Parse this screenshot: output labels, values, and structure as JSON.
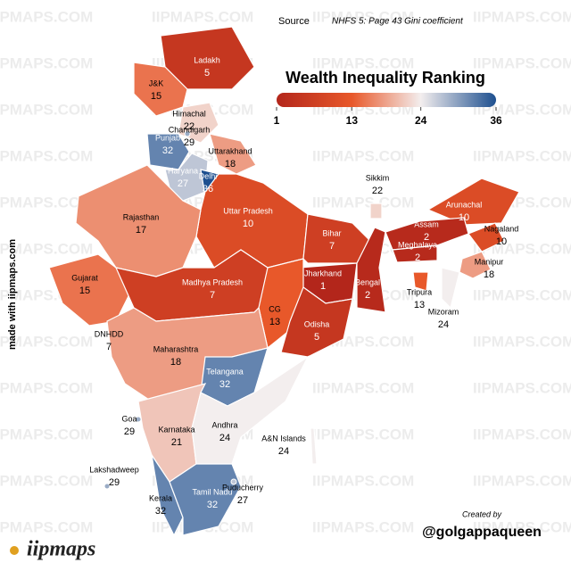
{
  "header": {
    "source_label": "Source",
    "source_text": "NHFS 5: Page 43 Gini coefficient"
  },
  "legend": {
    "title": "Wealth Inequality Ranking",
    "ticks": [
      1,
      13,
      24,
      36
    ],
    "colors": [
      "#b3261b",
      "#e8582a",
      "#f3eeee",
      "#1d4f8f"
    ]
  },
  "regions": [
    {
      "name": "Ladakh",
      "rank": 5
    },
    {
      "name": "J&K",
      "rank": 15
    },
    {
      "name": "Himachal",
      "rank": 22
    },
    {
      "name": "Chandigarh",
      "rank": 29
    },
    {
      "name": "Punjab",
      "rank": 32
    },
    {
      "name": "Haryana",
      "rank": 27
    },
    {
      "name": "Delhi",
      "rank": 36
    },
    {
      "name": "Uttarakhand",
      "rank": 18
    },
    {
      "name": "Uttar Pradesh",
      "rank": 10
    },
    {
      "name": "Rajasthan",
      "rank": 17
    },
    {
      "name": "Gujarat",
      "rank": 15
    },
    {
      "name": "Madhya Pradesh",
      "rank": 7
    },
    {
      "name": "Bihar",
      "rank": 7
    },
    {
      "name": "Jharkhand",
      "rank": 1
    },
    {
      "name": "Bengal",
      "rank": 2
    },
    {
      "name": "Sikkim",
      "rank": 22
    },
    {
      "name": "Arunachal",
      "rank": 10
    },
    {
      "name": "Assam",
      "rank": 2
    },
    {
      "name": "Meghalaya",
      "rank": 2
    },
    {
      "name": "Nagaland",
      "rank": 10
    },
    {
      "name": "Manipur",
      "rank": 18
    },
    {
      "name": "Tripura",
      "rank": 13
    },
    {
      "name": "Mizoram",
      "rank": 24
    },
    {
      "name": "CG",
      "rank": 13
    },
    {
      "name": "Odisha",
      "rank": 5
    },
    {
      "name": "DNHDD",
      "rank": 7
    },
    {
      "name": "Maharashtra",
      "rank": 18
    },
    {
      "name": "Telangana",
      "rank": 32
    },
    {
      "name": "Goa",
      "rank": 29
    },
    {
      "name": "Karnataka",
      "rank": 21
    },
    {
      "name": "Andhra",
      "rank": 24
    },
    {
      "name": "A&N Islands",
      "rank": 24
    },
    {
      "name": "Lakshadweep",
      "rank": 29
    },
    {
      "name": "Kerala",
      "rank": 32
    },
    {
      "name": "Tamil Nadu",
      "rank": 32
    },
    {
      "name": "Puducherry",
      "rank": 27
    }
  ],
  "side_text": "made with iipmaps.com",
  "credit": {
    "label": "Created by",
    "handle": "@golgappaqueen"
  },
  "logo": "iipmaps",
  "watermark": "IIPMAPS.COM"
}
